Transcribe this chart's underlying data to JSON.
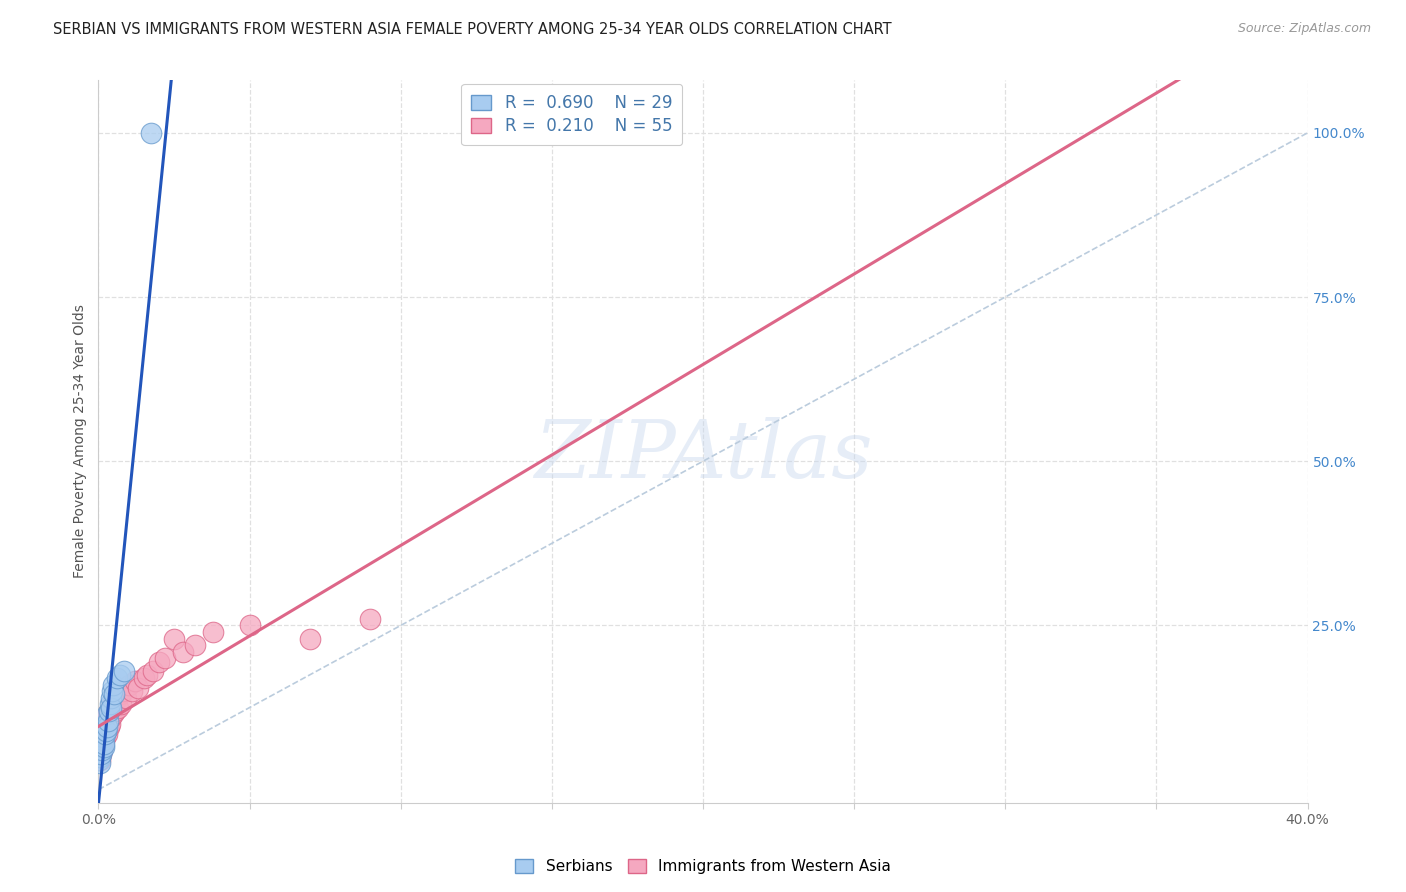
{
  "title": "SERBIAN VS IMMIGRANTS FROM WESTERN ASIA FEMALE POVERTY AMONG 25-34 YEAR OLDS CORRELATION CHART",
  "source": "Source: ZipAtlas.com",
  "ylabel": "Female Poverty Among 25-34 Year Olds",
  "xlim": [
    0.0,
    0.4
  ],
  "ylim": [
    -0.02,
    1.08
  ],
  "right_yticks": [
    0.0,
    0.25,
    0.5,
    0.75,
    1.0
  ],
  "right_yticklabels": [
    "",
    "25.0%",
    "50.0%",
    "75.0%",
    "100.0%"
  ],
  "watermark_text": "ZIPAtlas",
  "blue_series": {
    "label": "Serbians",
    "R": 0.69,
    "N": 29,
    "color": "#A8CCF0",
    "edge_color": "#6699CC",
    "x": [
      0.0002,
      0.0003,
      0.0004,
      0.0005,
      0.0006,
      0.0008,
      0.001,
      0.0012,
      0.0015,
      0.0016,
      0.0018,
      0.002,
      0.0022,
      0.0024,
      0.0026,
      0.0028,
      0.003,
      0.0032,
      0.0035,
      0.0038,
      0.004,
      0.0042,
      0.0045,
      0.0048,
      0.0052,
      0.006,
      0.007,
      0.0085,
      0.0175
    ],
    "y": [
      0.06,
      0.045,
      0.065,
      0.05,
      0.04,
      0.07,
      0.055,
      0.06,
      0.075,
      0.08,
      0.065,
      0.07,
      0.085,
      0.1,
      0.09,
      0.115,
      0.095,
      0.105,
      0.12,
      0.13,
      0.14,
      0.125,
      0.15,
      0.16,
      0.145,
      0.17,
      0.175,
      0.18,
      1.0
    ]
  },
  "pink_series": {
    "label": "Immigrants from Western Asia",
    "R": 0.21,
    "N": 55,
    "color": "#F5A8C0",
    "edge_color": "#DD6688",
    "x": [
      0.0001,
      0.0002,
      0.0003,
      0.0004,
      0.0005,
      0.0006,
      0.0007,
      0.0008,
      0.0009,
      0.001,
      0.0012,
      0.0013,
      0.0014,
      0.0015,
      0.0016,
      0.0017,
      0.0018,
      0.002,
      0.0022,
      0.0024,
      0.0026,
      0.0028,
      0.003,
      0.0032,
      0.0034,
      0.0036,
      0.0038,
      0.004,
      0.0042,
      0.0045,
      0.0048,
      0.005,
      0.0055,
      0.006,
      0.0065,
      0.007,
      0.0075,
      0.008,
      0.009,
      0.01,
      0.011,
      0.012,
      0.013,
      0.015,
      0.016,
      0.018,
      0.02,
      0.022,
      0.025,
      0.028,
      0.032,
      0.038,
      0.05,
      0.07,
      0.09
    ],
    "y": [
      0.055,
      0.06,
      0.05,
      0.065,
      0.045,
      0.07,
      0.055,
      0.06,
      0.075,
      0.065,
      0.08,
      0.06,
      0.09,
      0.07,
      0.085,
      0.095,
      0.075,
      0.1,
      0.08,
      0.11,
      0.09,
      0.105,
      0.085,
      0.115,
      0.095,
      0.12,
      0.1,
      0.125,
      0.11,
      0.13,
      0.115,
      0.135,
      0.12,
      0.14,
      0.125,
      0.145,
      0.13,
      0.15,
      0.14,
      0.16,
      0.15,
      0.165,
      0.155,
      0.17,
      0.175,
      0.18,
      0.195,
      0.2,
      0.23,
      0.21,
      0.22,
      0.24,
      0.25,
      0.23,
      0.26
    ]
  },
  "blue_line_color": "#2255BB",
  "pink_line_color": "#DD6688",
  "diagonal_color": "#BBCCDD",
  "grid_color": "#E0E0E0",
  "background_color": "#FFFFFF",
  "title_fontsize": 10.5,
  "source_fontsize": 9,
  "legend_fontsize": 12
}
